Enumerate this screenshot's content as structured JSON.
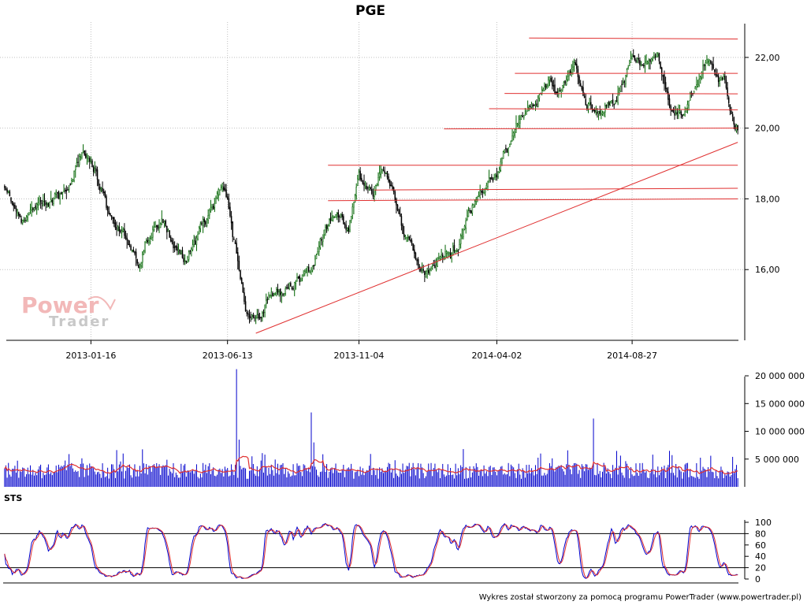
{
  "chart_data": [
    {
      "type": "candlestick",
      "title": "PGE",
      "watermark": {
        "line1": "Power",
        "line2": "Trader"
      },
      "x_tick_labels": [
        "2013-01-16",
        "2013-06-13",
        "2013-11-04",
        "2014-04-02",
        "2014-08-27"
      ],
      "y_tick_labels": [
        "16,00",
        "18,00",
        "20,00",
        "22,00"
      ],
      "y_ticks": [
        16,
        18,
        20,
        22
      ],
      "ylim": [
        14.0,
        23.0
      ],
      "grid": true,
      "colors": {
        "up": "#006400",
        "down": "#000000",
        "lines": "#e03030"
      },
      "price_anchors": [
        [
          "2012-10-15",
          18.3
        ],
        [
          "2012-11-01",
          17.4
        ],
        [
          "2012-11-20",
          17.8
        ],
        [
          "2012-12-10",
          18.0
        ],
        [
          "2012-12-25",
          18.4
        ],
        [
          "2013-01-08",
          19.3
        ],
        [
          "2013-01-16",
          19.1
        ],
        [
          "2013-01-30",
          18.0
        ],
        [
          "2013-02-12",
          17.2
        ],
        [
          "2013-02-26",
          16.9
        ],
        [
          "2013-03-08",
          16.2
        ],
        [
          "2013-03-20",
          16.9
        ],
        [
          "2013-04-03",
          17.4
        ],
        [
          "2013-04-17",
          16.8
        ],
        [
          "2013-04-30",
          16.3
        ],
        [
          "2013-05-14",
          17.0
        ],
        [
          "2013-05-28",
          17.8
        ],
        [
          "2013-06-06",
          18.3
        ],
        [
          "2013-06-13",
          18.1
        ],
        [
          "2013-06-25",
          16.2
        ],
        [
          "2013-07-03",
          14.8
        ],
        [
          "2013-07-17",
          14.6
        ],
        [
          "2013-07-31",
          15.2
        ],
        [
          "2013-08-14",
          15.4
        ],
        [
          "2013-08-28",
          15.5
        ],
        [
          "2013-09-11",
          16.0
        ],
        [
          "2013-09-25",
          16.9
        ],
        [
          "2013-10-09",
          17.6
        ],
        [
          "2013-10-23",
          17.2
        ],
        [
          "2013-11-04",
          18.8
        ],
        [
          "2013-11-18",
          18.0
        ],
        [
          "2013-11-28",
          18.7
        ],
        [
          "2013-12-10",
          18.2
        ],
        [
          "2013-12-20",
          17.2
        ],
        [
          "2014-01-07",
          16.4
        ],
        [
          "2014-01-22",
          15.9
        ],
        [
          "2014-02-05",
          16.4
        ],
        [
          "2014-02-19",
          16.5
        ],
        [
          "2014-03-03",
          17.7
        ],
        [
          "2014-03-17",
          18.2
        ],
        [
          "2014-04-02",
          18.6
        ],
        [
          "2014-04-16",
          19.6
        ],
        [
          "2014-04-30",
          20.4
        ],
        [
          "2014-05-14",
          20.8
        ],
        [
          "2014-05-28",
          21.4
        ],
        [
          "2014-06-11",
          21.1
        ],
        [
          "2014-06-25",
          21.8
        ],
        [
          "2014-07-09",
          20.6
        ],
        [
          "2014-07-23",
          20.5
        ],
        [
          "2014-08-06",
          20.7
        ],
        [
          "2014-08-20",
          21.5
        ],
        [
          "2014-08-27",
          22.0
        ],
        [
          "2014-09-10",
          21.7
        ],
        [
          "2014-09-24",
          22.1
        ],
        [
          "2014-10-08",
          20.5
        ],
        [
          "2014-10-22",
          20.4
        ],
        [
          "2014-11-05",
          21.3
        ],
        [
          "2014-11-19",
          22.1
        ],
        [
          "2014-12-03",
          21.4
        ],
        [
          "2014-12-17",
          20.0
        ]
      ],
      "trend_lines": [
        {
          "from": [
            "2013-07-15",
            14.2
          ],
          "to": [
            "2014-12-20",
            19.6
          ]
        },
        {
          "from": [
            "2014-05-07",
            22.55
          ],
          "to": [
            "2014-12-20",
            22.52
          ]
        },
        {
          "from": [
            "2014-04-22",
            21.55
          ],
          "to": [
            "2014-12-20",
            21.55
          ]
        },
        {
          "from": [
            "2014-04-10",
            20.98
          ],
          "to": [
            "2014-12-20",
            20.97
          ]
        },
        {
          "from": [
            "2014-03-25",
            20.55
          ],
          "to": [
            "2014-12-20",
            20.52
          ]
        },
        {
          "from": [
            "2014-02-04",
            19.98
          ],
          "to": [
            "2014-12-20",
            20.0
          ]
        },
        {
          "from": [
            "2013-10-01",
            18.95
          ],
          "to": [
            "2014-12-20",
            18.95
          ]
        },
        {
          "from": [
            "2013-11-20",
            18.25
          ],
          "to": [
            "2014-12-20",
            18.3
          ]
        },
        {
          "from": [
            "2013-10-01",
            17.95
          ],
          "to": [
            "2014-12-20",
            18.0
          ]
        }
      ]
    },
    {
      "type": "bar",
      "title": "",
      "y_tick_labels": [
        "5 000 000",
        "10 000 000",
        "15 000 000",
        "20 000 000"
      ],
      "y_ticks": [
        5000000,
        10000000,
        15000000,
        20000000
      ],
      "ylim": [
        0,
        21000000
      ],
      "typical_volume": 3200000,
      "spikes": [
        [
          "2013-06-24",
          21200000
        ],
        [
          "2013-06-26",
          8500000
        ],
        [
          "2013-09-12",
          13400000
        ],
        [
          "2013-09-16",
          8000000
        ],
        [
          "2014-07-16",
          12300000
        ],
        [
          "2014-02-25",
          6800000
        ],
        [
          "2014-11-20",
          5600000
        ],
        [
          "2014-12-15",
          5400000
        ],
        [
          "2013-02-20",
          6000000
        ],
        [
          "2014-05-20",
          6000000
        ],
        [
          "2013-07-10",
          5500000
        ]
      ],
      "colors": {
        "bars": "#0000cc",
        "moving_average": "#e03030"
      }
    },
    {
      "type": "line",
      "title": "STS",
      "y_tick_labels": [
        "0",
        "20",
        "40",
        "60",
        "80",
        "100"
      ],
      "y_ticks": [
        0,
        20,
        40,
        60,
        80,
        100
      ],
      "ylim": [
        0,
        100
      ],
      "reference_lines": [
        20,
        80
      ],
      "colors": {
        "k_line": "#0000cc",
        "d_line": "#e03030"
      }
    }
  ],
  "footer": "Wykres został stworzony za pomocą programu PowerTrader (www.powertrader.pl)"
}
